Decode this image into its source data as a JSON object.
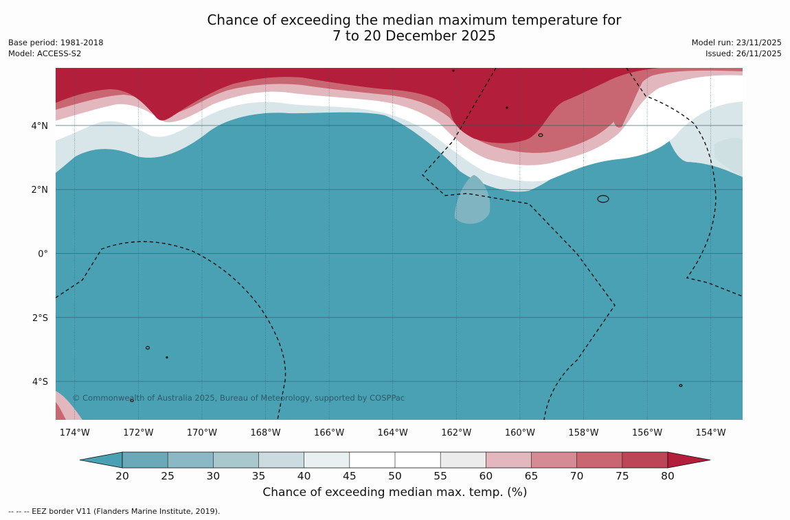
{
  "title": {
    "line1": "Chance of exceeding the median maximum temperature for",
    "line2": "7 to 20 December 2025"
  },
  "meta_left": {
    "base_period": "Base period: 1981-2018",
    "model": "Model: ACCESS-S2"
  },
  "meta_right": {
    "model_run": "Model run: 23/11/2025",
    "issued": "Issued: 26/11/2025"
  },
  "map": {
    "lon_range": [
      -174.6,
      -153.0
    ],
    "lat_range": [
      -5.2,
      5.8
    ],
    "x_ticks": [
      "174°W",
      "172°W",
      "170°W",
      "168°W",
      "166°W",
      "164°W",
      "162°W",
      "160°W",
      "158°W",
      "156°W",
      "154°W"
    ],
    "x_tick_values": [
      -174,
      -172,
      -170,
      -168,
      -166,
      -164,
      -162,
      -160,
      -158,
      -156,
      -154
    ],
    "y_ticks": [
      "4°N",
      "2°N",
      "0°",
      "2°S",
      "4°S"
    ],
    "y_tick_values": [
      4,
      2,
      0,
      -2,
      -4
    ],
    "copyright": "© Commonwealth of Australia 2025, Bureau of Meteorology, supported by COSPPac",
    "colors": {
      "ocean_low": "#4aa1b3",
      "warm_high": "#b31e3b",
      "grid": "#24566a"
    }
  },
  "colorbar": {
    "ticks": [
      "20",
      "25",
      "30",
      "35",
      "40",
      "45",
      "50",
      "55",
      "60",
      "65",
      "70",
      "75",
      "80"
    ],
    "colors": [
      "#6ba9b9",
      "#8ab9c5",
      "#a8c8cd",
      "#ccdbdf",
      "#e8f0f1",
      "#ffffff",
      "#ffffff",
      "#ececec",
      "#e2b7bd",
      "#d58b94",
      "#c86772",
      "#bc4556"
    ],
    "under_color": "#4aa1b3",
    "over_color": "#b31e3b",
    "label": "Chance of exceeding median max. temp. (%)"
  },
  "footnote": "--  --  -- EEZ border V11 (Flanders Marine Institute, 2019)."
}
